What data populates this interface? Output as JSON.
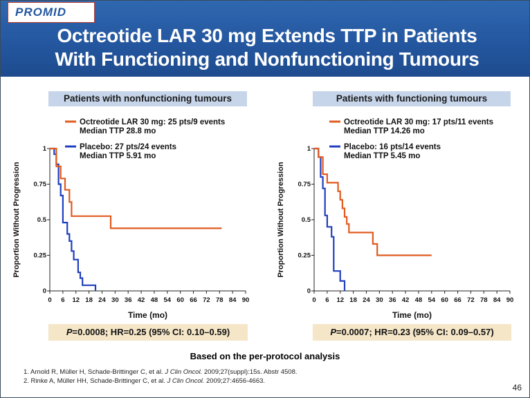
{
  "slide": {
    "tag": "PROMID",
    "title_line1": "Octreotide LAR 30 mg Extends TTP in Patients",
    "title_line2": "With Functioning and Nonfunctioning Tumours",
    "basis_note": "Based on the per-protocol analysis",
    "references": [
      {
        "pre": "1. Arnold R, Müller H, Schade-Brittinger C, et al. ",
        "journal": "J Clin Oncol.",
        "post": " 2009;27(suppl):15s. Abstr 4508."
      },
      {
        "pre": "2. Rinke A, Müller HH, Schade-Brittinger C, et al. ",
        "journal": "J Clin Oncol.",
        "post": " 2009;27:4656-4663."
      }
    ],
    "page_number": "46"
  },
  "colors": {
    "octreotide": "#e05a1e",
    "placebo": "#1f3fbf",
    "header_blue": "#2457a0"
  },
  "chart_data": [
    {
      "type": "line",
      "subtitle": "Patients with nonfunctioning tumours",
      "xlabel": "Time (mo)",
      "ylabel": "Proportion Without Progression",
      "xlim": [
        0,
        90
      ],
      "ylim": [
        0,
        1
      ],
      "xticks": [
        "0",
        "6",
        "12",
        "18",
        "24",
        "30",
        "36",
        "42",
        "48",
        "54",
        "60",
        "66",
        "72",
        "78",
        "84",
        "90"
      ],
      "yticks": [
        "0",
        "0.25",
        "0.5",
        "0.75",
        "1"
      ],
      "grid": false,
      "series": [
        {
          "name": "Octreotide LAR 30 mg: 25 pts/9 events",
          "name2": "Median TTP 28.8 mo",
          "color": "#e05a1e",
          "x": [
            0,
            3,
            3,
            5,
            5,
            7,
            7,
            9,
            9,
            10,
            10,
            28,
            28,
            79
          ],
          "y": [
            1,
            1,
            0.875,
            0.875,
            0.79,
            0.79,
            0.71,
            0.71,
            0.625,
            0.625,
            0.525,
            0.525,
            0.44,
            0.44
          ]
        },
        {
          "name": "Placebo: 27 pts/24 events",
          "name2": "Median TTP 5.91 mo",
          "color": "#1f3fbf",
          "x": [
            0,
            2,
            2,
            3,
            3,
            4,
            4,
            5,
            5,
            6,
            6,
            8,
            8,
            9,
            9,
            10,
            10,
            11,
            11,
            12,
            12,
            13,
            13,
            14,
            14,
            15,
            15,
            16,
            16,
            21,
            21
          ],
          "y": [
            1,
            1,
            0.96,
            0.96,
            0.89,
            0.89,
            0.75,
            0.75,
            0.67,
            0.67,
            0.48,
            0.48,
            0.4,
            0.4,
            0.35,
            0.35,
            0.28,
            0.28,
            0.22,
            0.22,
            0.22,
            0.22,
            0.13,
            0.13,
            0.09,
            0.09,
            0.04,
            0.04,
            0.04,
            0.04,
            0
          ]
        }
      ],
      "stat_p": "P",
      "stat_text": "=0.0008; HR=0.25 (95% CI: 0.10–0.59)"
    },
    {
      "type": "line",
      "subtitle": "Patients with functioning tumours",
      "xlabel": "Time (mo)",
      "ylabel": "Proportion Without Progression",
      "xlim": [
        0,
        90
      ],
      "ylim": [
        0,
        1
      ],
      "xticks": [
        "0",
        "6",
        "12",
        "18",
        "24",
        "30",
        "36",
        "42",
        "48",
        "54",
        "60",
        "66",
        "72",
        "78",
        "84",
        "90"
      ],
      "yticks": [
        "0",
        "0.25",
        "0.5",
        "0.75",
        "1"
      ],
      "grid": false,
      "series": [
        {
          "name": "Octreotide LAR 30 mg: 17 pts/11 events",
          "name2": "Median TTP 14.26 mo",
          "color": "#e05a1e",
          "x": [
            0,
            2,
            2,
            4,
            4,
            6,
            6,
            11,
            11,
            12,
            12,
            13,
            13,
            14,
            14,
            15,
            15,
            16,
            16,
            27,
            27,
            29,
            29,
            54
          ],
          "y": [
            1,
            1,
            0.94,
            0.94,
            0.82,
            0.82,
            0.76,
            0.76,
            0.7,
            0.7,
            0.64,
            0.64,
            0.58,
            0.58,
            0.52,
            0.52,
            0.47,
            0.47,
            0.41,
            0.41,
            0.33,
            0.33,
            0.25,
            0.25
          ]
        },
        {
          "name": "Placebo: 16 pts/14 events",
          "name2": "Median TTP 5.45 mo",
          "color": "#1f3fbf",
          "x": [
            0,
            2,
            2,
            3,
            3,
            4,
            4,
            5,
            5,
            6,
            6,
            8,
            8,
            9,
            9,
            11,
            11,
            12,
            12,
            14,
            14
          ],
          "y": [
            1,
            1,
            0.94,
            0.94,
            0.8,
            0.8,
            0.72,
            0.72,
            0.53,
            0.53,
            0.45,
            0.45,
            0.38,
            0.38,
            0.14,
            0.14,
            0.14,
            0.14,
            0.07,
            0.07,
            0
          ]
        }
      ],
      "stat_p": "P",
      "stat_text": "=0.0007; HR=0.23 (95% CI: 0.09–0.57)"
    }
  ]
}
